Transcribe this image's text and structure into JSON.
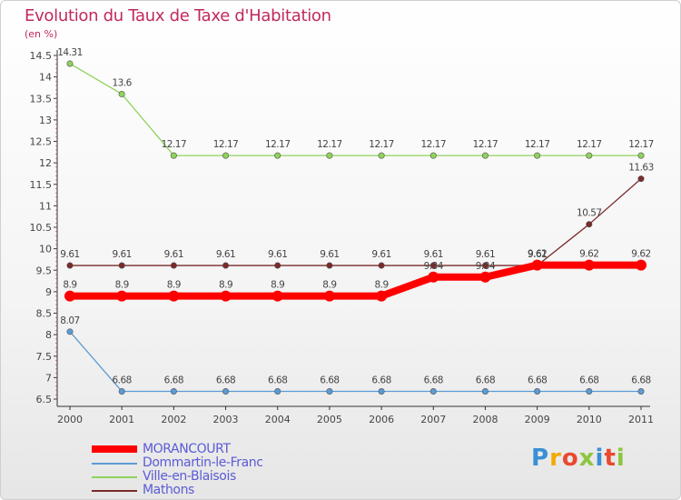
{
  "title": "Evolution du Taux de Taxe d'Habitation",
  "subtitle": "(en %)",
  "logo": "Proxiti",
  "chart_data": {
    "type": "line",
    "title": "Evolution du Taux de Taxe d'Habitation",
    "ylabel": "(en %)",
    "xlabel": "",
    "ylim": [
      6.5,
      14.5
    ],
    "yticks": [
      "6.5",
      "7",
      "7.5",
      "8",
      "8.5",
      "9",
      "9.5",
      "10",
      "10.5",
      "11",
      "11.5",
      "12",
      "12.5",
      "13",
      "13.5",
      "14",
      "14.5"
    ],
    "x": [
      "2000",
      "2001",
      "2002",
      "2003",
      "2004",
      "2005",
      "2006",
      "2007",
      "2008",
      "2009",
      "2010",
      "2011"
    ],
    "legend_position": "bottom-left",
    "grid": false,
    "series": [
      {
        "name": "MORANCOURT",
        "color": "#ff0000",
        "values": [
          8.9,
          8.9,
          8.9,
          8.9,
          8.9,
          8.9,
          8.9,
          9.34,
          9.34,
          9.62,
          9.62,
          9.62
        ],
        "labels": [
          "8.9",
          "8.9",
          "8.9",
          "8.9",
          "8.9",
          "8.9",
          "8.9",
          "9.34",
          "9.34",
          "9.62",
          "9.62",
          "9.62"
        ]
      },
      {
        "name": "Dommartin-le-Franc",
        "color": "#5b9bd5",
        "values": [
          8.07,
          6.68,
          6.68,
          6.68,
          6.68,
          6.68,
          6.68,
          6.68,
          6.68,
          6.68,
          6.68,
          6.68
        ],
        "labels": [
          "8.07",
          "6.68",
          "6.68",
          "6.68",
          "6.68",
          "6.68",
          "6.68",
          "6.68",
          "6.68",
          "6.68",
          "6.68",
          "6.68"
        ]
      },
      {
        "name": "Ville-en-Blaisois",
        "color": "#8fd35a",
        "values": [
          14.31,
          13.6,
          12.17,
          12.17,
          12.17,
          12.17,
          12.17,
          12.17,
          12.17,
          12.17,
          12.17,
          12.17
        ],
        "labels": [
          "14.31",
          "13.6",
          "12.17",
          "12.17",
          "12.17",
          "12.17",
          "12.17",
          "12.17",
          "12.17",
          "12.17",
          "12.17",
          "12.17"
        ]
      },
      {
        "name": "Mathons",
        "color": "#7a2a2a",
        "values": [
          9.61,
          9.61,
          9.61,
          9.61,
          9.61,
          9.61,
          9.61,
          9.61,
          9.61,
          9.61,
          10.57,
          11.63
        ],
        "labels": [
          "9.61",
          "9.61",
          "9.61",
          "9.61",
          "9.61",
          "9.61",
          "9.61",
          "9.61",
          "9.61",
          "9.61",
          "10.57",
          "11.63"
        ]
      }
    ]
  }
}
